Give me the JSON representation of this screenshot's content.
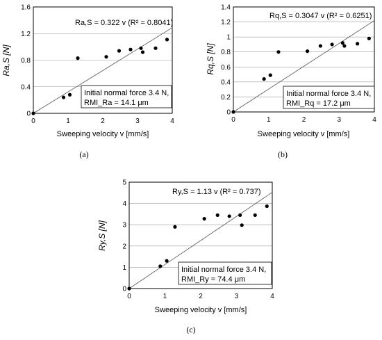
{
  "chart_data": [
    {
      "type": "scatter",
      "x": [
        0,
        0.87,
        1.05,
        1.28,
        2.1,
        2.47,
        2.8,
        3.1,
        3.15,
        3.52,
        3.85
      ],
      "y": [
        0,
        0.24,
        0.28,
        0.83,
        0.85,
        0.94,
        0.96,
        0.98,
        0.92,
        0.98,
        1.11
      ],
      "trendline": {
        "slope": 0.322
      },
      "xlim": [
        0,
        4
      ],
      "ylim": [
        0,
        1.6
      ],
      "xticks": [
        "0",
        "1",
        "2",
        "3",
        "4"
      ],
      "yticks": [
        "0",
        "0.4",
        "0.8",
        "1.2",
        "1.6"
      ],
      "xlabel": "Sweeping velocity v  [mm/s]",
      "ylabel": "Ra,S [N]",
      "equation": "Ra,S = 0.322 v (R² = 0.8041)",
      "note_line1": "Initial normal force 3.4 N,",
      "note_line2": "RMI_Ra = 14.1 μm",
      "caption": "(a)",
      "grid": "horizontal"
    },
    {
      "type": "scatter",
      "x": [
        0,
        0.87,
        1.05,
        1.28,
        2.1,
        2.47,
        2.8,
        3.1,
        3.15,
        3.52,
        3.85
      ],
      "y": [
        0,
        0.44,
        0.49,
        0.8,
        0.81,
        0.88,
        0.9,
        0.92,
        0.88,
        0.91,
        0.98
      ],
      "trendline": {
        "slope": 0.3047
      },
      "xlim": [
        0,
        4
      ],
      "ylim": [
        0,
        1.4
      ],
      "xticks": [
        "0",
        "1",
        "2",
        "3",
        "4"
      ],
      "yticks": [
        "0",
        "0.2",
        "0.4",
        "0.6",
        "0.8",
        "1",
        "1.2",
        "1.4"
      ],
      "xlabel": "Sweeping velocity v  [mm/s]",
      "ylabel": "Rq,S [N]",
      "equation": "Rq,S = 0.3047 v (R² = 0.6251)",
      "note_line1": "Initial normal force 3.4 N,",
      "note_line2": "RMI_Rq = 17.2 μm",
      "caption": "(b)",
      "grid": "horizontal"
    },
    {
      "type": "scatter",
      "x": [
        0,
        0.87,
        1.05,
        1.28,
        2.1,
        2.47,
        2.8,
        3.1,
        3.15,
        3.52,
        3.85
      ],
      "y": [
        0,
        1.05,
        1.3,
        2.9,
        3.28,
        3.45,
        3.4,
        3.45,
        2.98,
        3.45,
        3.87
      ],
      "trendline": {
        "slope": 1.13
      },
      "xlim": [
        0,
        4
      ],
      "ylim": [
        0,
        5
      ],
      "xticks": [
        "0",
        "1",
        "2",
        "3",
        "4"
      ],
      "yticks": [
        "0",
        "1",
        "2",
        "3",
        "4",
        "5"
      ],
      "xlabel": "Sweeping velocity v  [mm/s]",
      "ylabel": "Ry,S [N]",
      "equation": "Ry,S = 1.13 v (R² = 0.737)",
      "note_line1": "Initial normal force 3.4 N,",
      "note_line2": "RMI_Ry = 74.4 μm",
      "caption": "(c)",
      "grid": "horizontal"
    }
  ]
}
